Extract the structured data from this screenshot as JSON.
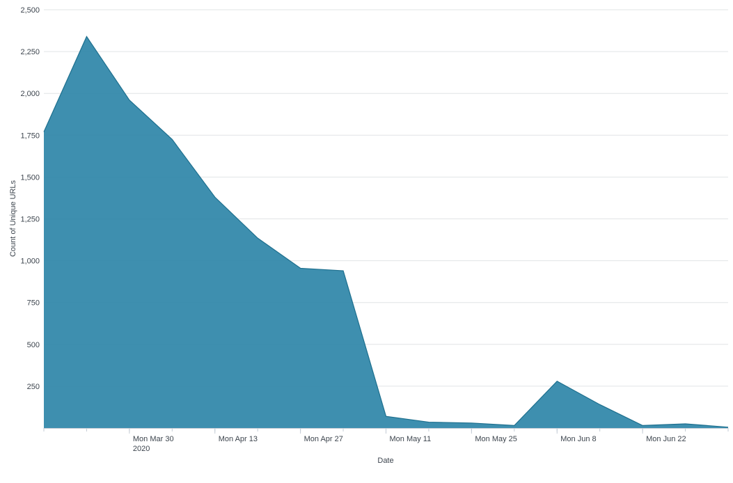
{
  "chart_data": {
    "type": "area",
    "title": "",
    "xlabel": "Date",
    "ylabel": "Count of Unique URLs",
    "x": [
      "2020-03-16",
      "2020-03-23",
      "2020-03-30",
      "2020-04-06",
      "2020-04-13",
      "2020-04-20",
      "2020-04-27",
      "2020-05-04",
      "2020-05-11",
      "2020-05-18",
      "2020-05-25",
      "2020-06-01",
      "2020-06-08",
      "2020-06-15",
      "2020-06-22",
      "2020-06-29",
      "2020-07-06"
    ],
    "series": [
      {
        "values": [
          1770,
          2340,
          1960,
          1725,
          1380,
          1135,
          955,
          940,
          70,
          35,
          30,
          15,
          280,
          140,
          15,
          25,
          5
        ]
      }
    ],
    "xlim": [
      "2020-03-16",
      "2020-07-06"
    ],
    "ylim": [
      0,
      2500
    ],
    "y_ticks": [
      "250",
      "500",
      "750",
      "1,000",
      "1,250",
      "1,500",
      "1,750",
      "2,000",
      "2,250",
      "2,500"
    ],
    "x_ticks": [
      {
        "date": "2020-03-30",
        "label": "Mon Mar 30",
        "sublabel": "2020"
      },
      {
        "date": "2020-04-13",
        "label": "Mon Apr 13",
        "sublabel": ""
      },
      {
        "date": "2020-04-27",
        "label": "Mon Apr 27",
        "sublabel": ""
      },
      {
        "date": "2020-05-11",
        "label": "Mon May 11",
        "sublabel": ""
      },
      {
        "date": "2020-05-25",
        "label": "Mon May 25",
        "sublabel": ""
      },
      {
        "date": "2020-06-08",
        "label": "Mon Jun 8",
        "sublabel": ""
      },
      {
        "date": "2020-06-22",
        "label": "Mon Jun 22",
        "sublabel": ""
      }
    ],
    "grid": true,
    "fill_color": "#2e86a8",
    "line_color": "#1d6f8e"
  }
}
